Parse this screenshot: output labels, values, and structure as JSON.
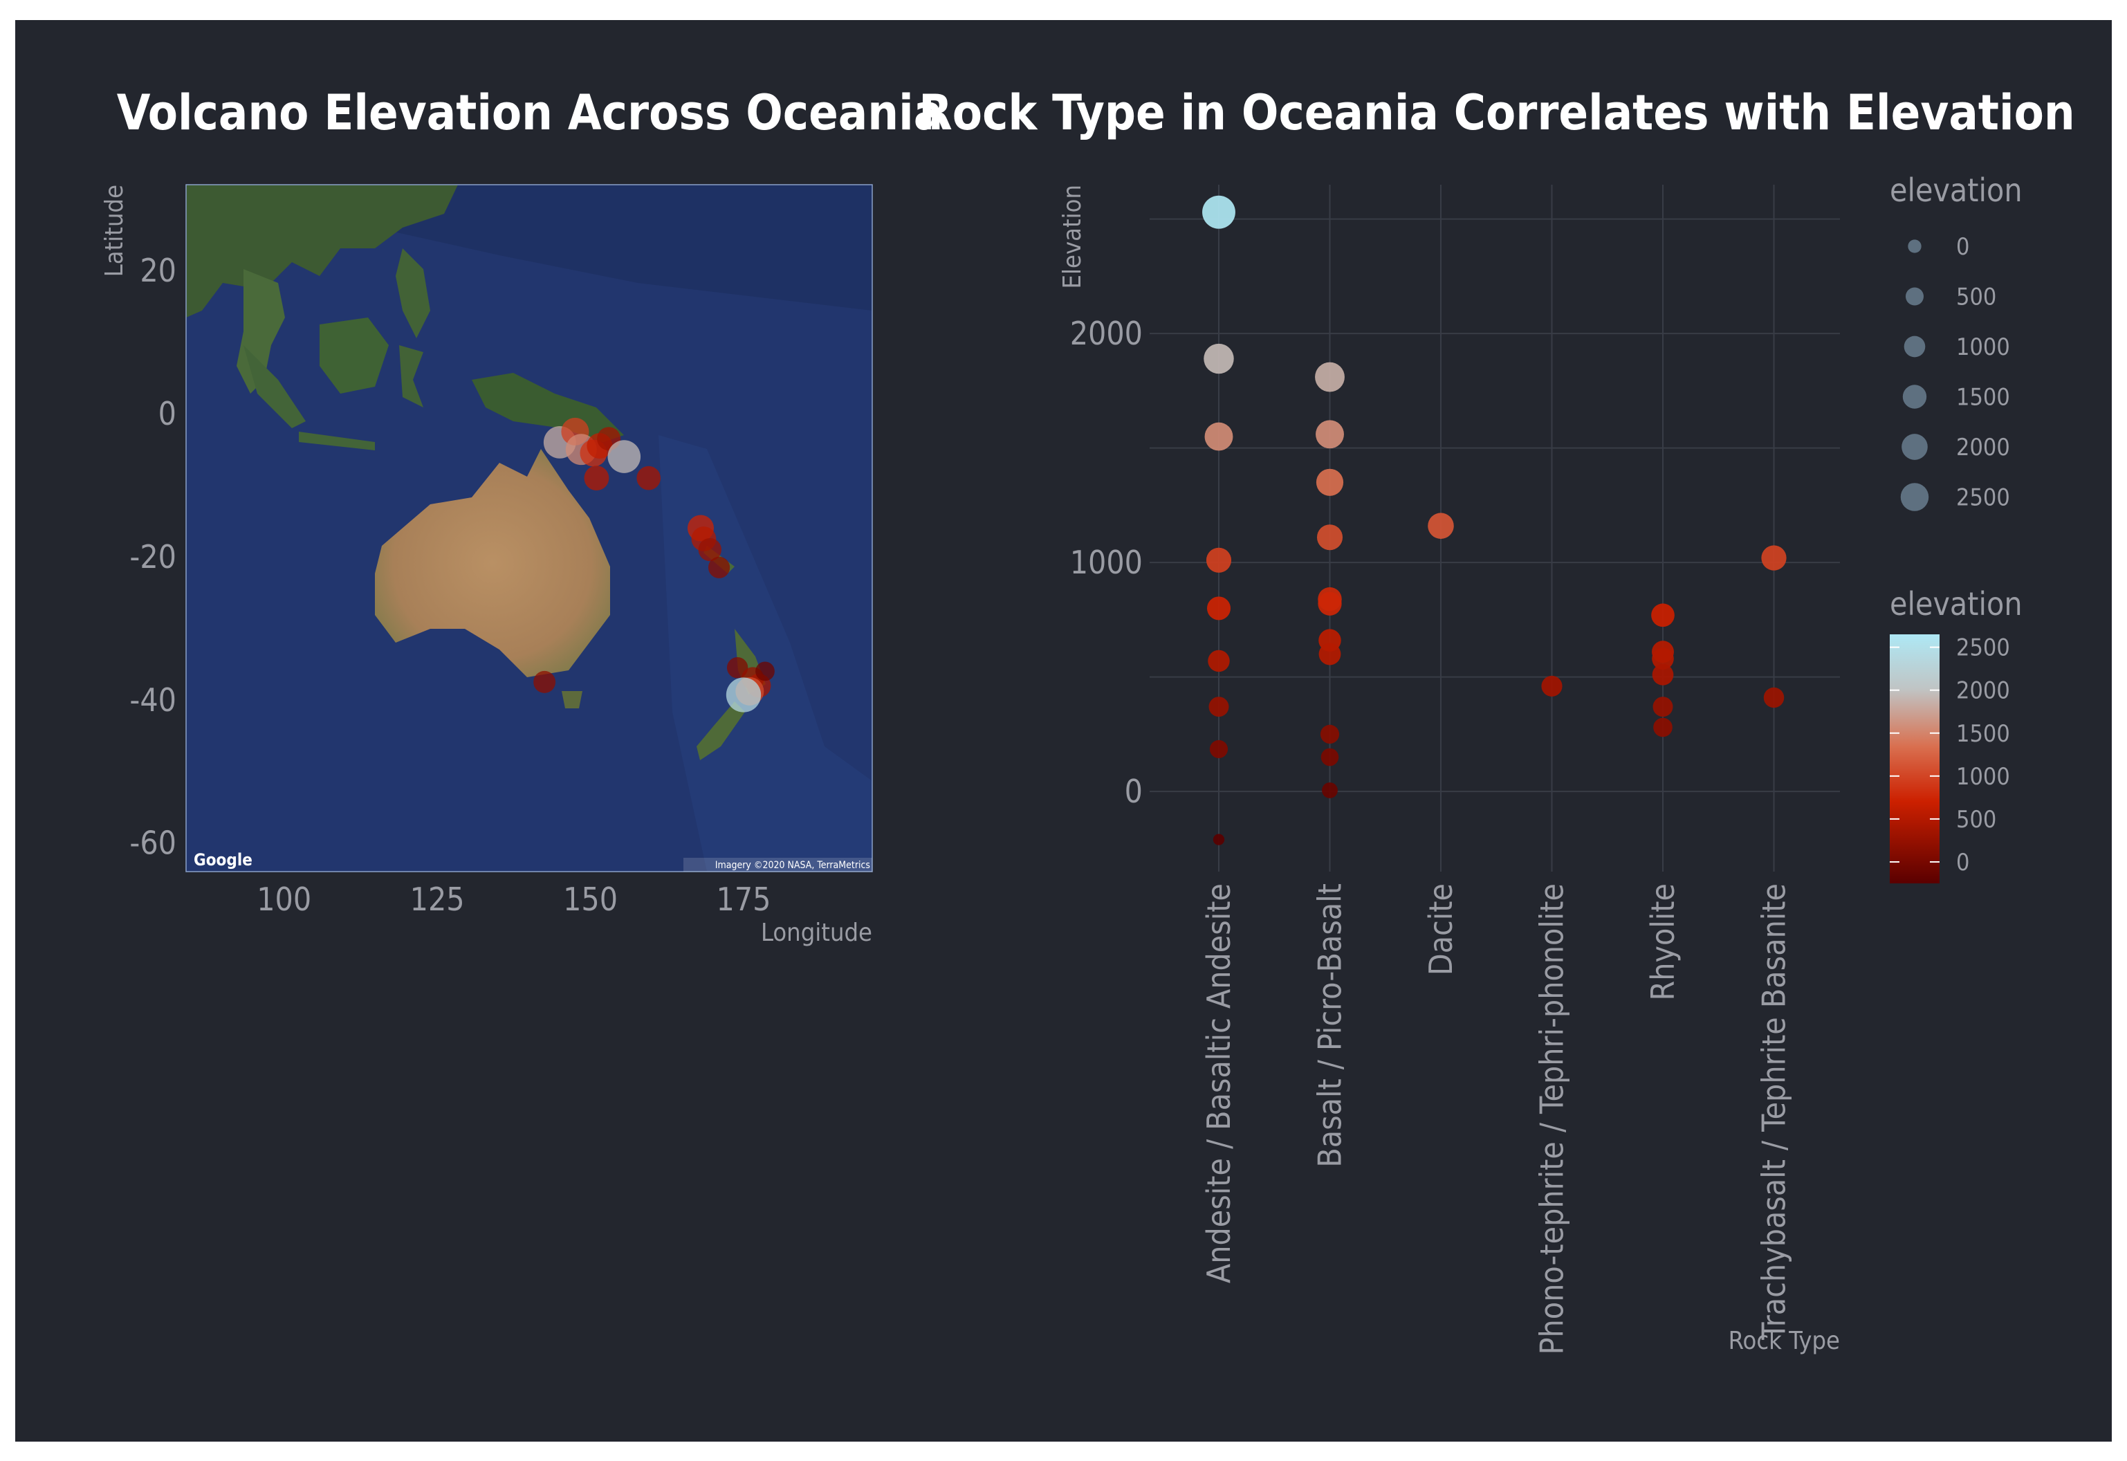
{
  "colors": {
    "background": "#23262e",
    "text": "#9a9ca4",
    "title": "#ffffff",
    "gradient": [
      "#5a0000",
      "#cc2000",
      "#d97050",
      "#c0c4c4",
      "#aee8f5"
    ]
  },
  "chart_data": [
    {
      "type": "scatter",
      "title": "Volcano Elevation Across Oceania",
      "xlabel": "Longitude",
      "ylabel": "Latitude",
      "xlim": [
        84,
        196
      ],
      "ylim": [
        -64,
        32
      ],
      "xticks": [
        "100",
        "125",
        "150",
        "175"
      ],
      "yticks": [
        "20",
        "0",
        "-20",
        "-40",
        "-60"
      ],
      "basemap_credit": "Google",
      "basemap_attribution": "Imagery ©2020 NASA, TerraMetrics",
      "points": [
        {
          "lon": 145.0,
          "lat": -4.0,
          "elevation": 1800
        },
        {
          "lon": 147.5,
          "lat": -2.5,
          "elevation": 1000
        },
        {
          "lon": 148.5,
          "lat": -5.0,
          "elevation": 1550
        },
        {
          "lon": 150.5,
          "lat": -5.5,
          "elevation": 900
        },
        {
          "lon": 151.5,
          "lat": -4.5,
          "elevation": 700
        },
        {
          "lon": 151.0,
          "lat": -9.0,
          "elevation": 600
        },
        {
          "lon": 153.0,
          "lat": -3.5,
          "elevation": 450
        },
        {
          "lon": 155.5,
          "lat": -6.0,
          "elevation": 1900
        },
        {
          "lon": 159.5,
          "lat": -9.0,
          "elevation": 500
        },
        {
          "lon": 168.0,
          "lat": -16.0,
          "elevation": 800
        },
        {
          "lon": 168.5,
          "lat": -17.5,
          "elevation": 600
        },
        {
          "lon": 169.5,
          "lat": -19.0,
          "elevation": 400
        },
        {
          "lon": 171.0,
          "lat": -21.5,
          "elevation": 250
        },
        {
          "lon": 142.5,
          "lat": -37.5,
          "elevation": 300
        },
        {
          "lon": 174.0,
          "lat": -35.5,
          "elevation": 200
        },
        {
          "lon": 176.5,
          "lat": -37.0,
          "elevation": 350
        },
        {
          "lon": 177.5,
          "lat": -38.0,
          "elevation": 500
        },
        {
          "lon": 176.0,
          "lat": -38.8,
          "elevation": 1100
        },
        {
          "lon": 175.0,
          "lat": -39.3,
          "elevation": 2300
        },
        {
          "lon": 178.5,
          "lat": -36.0,
          "elevation": 50
        }
      ]
    },
    {
      "type": "scatter",
      "title": "Rock Type in Oceania Correlates with Elevation",
      "xlabel": "Rock Type",
      "ylabel": "Elevation",
      "categories": [
        "Andesite / Basaltic Andesite",
        "Basalt / Picro-Basalt",
        "Dacite",
        "Phono-tephrite /  Tephri-phonolite",
        "Rhyolite",
        "Trachybasalt / Tephrite Basanite"
      ],
      "ylim": [
        -350,
        2650
      ],
      "yticks": [
        "0",
        "1000",
        "2000"
      ],
      "points": [
        {
          "category": 0,
          "elevation": 2530
        },
        {
          "category": 0,
          "elevation": 1890
        },
        {
          "category": 0,
          "elevation": 1550
        },
        {
          "category": 0,
          "elevation": 1010
        },
        {
          "category": 0,
          "elevation": 800
        },
        {
          "category": 0,
          "elevation": 570
        },
        {
          "category": 0,
          "elevation": 370
        },
        {
          "category": 0,
          "elevation": 185
        },
        {
          "category": 0,
          "elevation": -210
        },
        {
          "category": 1,
          "elevation": 1810
        },
        {
          "category": 1,
          "elevation": 1560
        },
        {
          "category": 1,
          "elevation": 1350
        },
        {
          "category": 1,
          "elevation": 1110
        },
        {
          "category": 1,
          "elevation": 840
        },
        {
          "category": 1,
          "elevation": 820
        },
        {
          "category": 1,
          "elevation": 660
        },
        {
          "category": 1,
          "elevation": 600
        },
        {
          "category": 1,
          "elevation": 250
        },
        {
          "category": 1,
          "elevation": 150
        },
        {
          "category": 1,
          "elevation": 5
        },
        {
          "category": 2,
          "elevation": 1160
        },
        {
          "category": 3,
          "elevation": 460
        },
        {
          "category": 4,
          "elevation": 770
        },
        {
          "category": 4,
          "elevation": 610
        },
        {
          "category": 4,
          "elevation": 580
        },
        {
          "category": 4,
          "elevation": 510
        },
        {
          "category": 4,
          "elevation": 370
        },
        {
          "category": 4,
          "elevation": 280
        },
        {
          "category": 5,
          "elevation": 1020
        },
        {
          "category": 5,
          "elevation": 410
        }
      ]
    }
  ],
  "legend_size": {
    "title": "elevation",
    "labels": [
      "0",
      "500",
      "1000",
      "1500",
      "2000",
      "2500"
    ],
    "values": [
      0,
      500,
      1000,
      1500,
      2000,
      2500
    ]
  },
  "legend_color": {
    "title": "elevation",
    "labels": [
      "2500",
      "2000",
      "1500",
      "1000",
      "500",
      "0"
    ],
    "values": [
      2500,
      2000,
      1500,
      1000,
      500,
      0
    ]
  }
}
